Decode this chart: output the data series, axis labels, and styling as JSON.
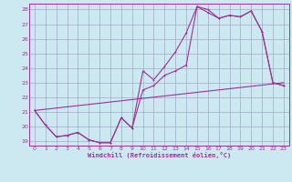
{
  "xlabel": "Windchill (Refroidissement éolien,°C)",
  "bg_color": "#cce8f0",
  "grid_color": "#9999bb",
  "line_color": "#993399",
  "spine_color": "#993399",
  "xlim": [
    -0.5,
    23.5
  ],
  "ylim": [
    18.7,
    28.4
  ],
  "xticks": [
    0,
    1,
    2,
    3,
    4,
    5,
    6,
    7,
    8,
    9,
    10,
    11,
    12,
    13,
    14,
    15,
    16,
    17,
    18,
    19,
    20,
    21,
    22,
    23
  ],
  "yticks": [
    19,
    20,
    21,
    22,
    23,
    24,
    25,
    26,
    27,
    28
  ],
  "line1_x": [
    0,
    1,
    2,
    3,
    4,
    5,
    6,
    7,
    8,
    9,
    10,
    11,
    12,
    13,
    14,
    15,
    16,
    17,
    18,
    19,
    20,
    21,
    22,
    23
  ],
  "line1_y": [
    21.1,
    20.1,
    19.3,
    19.4,
    19.6,
    19.1,
    18.9,
    18.9,
    20.6,
    19.9,
    22.5,
    22.8,
    23.5,
    23.8,
    24.2,
    28.2,
    28.0,
    27.4,
    27.6,
    27.5,
    27.9,
    26.5,
    23.0,
    22.8
  ],
  "line2_x": [
    0,
    1,
    2,
    3,
    4,
    5,
    6,
    7,
    8,
    9,
    10,
    11,
    12,
    13,
    14,
    15,
    16,
    17,
    18,
    19,
    20,
    21,
    22,
    23
  ],
  "line2_y": [
    21.1,
    20.1,
    19.3,
    19.4,
    19.6,
    19.1,
    18.9,
    18.9,
    20.6,
    19.9,
    23.8,
    23.2,
    24.1,
    25.1,
    26.4,
    28.2,
    27.8,
    27.4,
    27.6,
    27.5,
    27.9,
    26.5,
    23.0,
    22.8
  ],
  "line3_x": [
    0,
    23
  ],
  "line3_y": [
    21.1,
    23.0
  ]
}
